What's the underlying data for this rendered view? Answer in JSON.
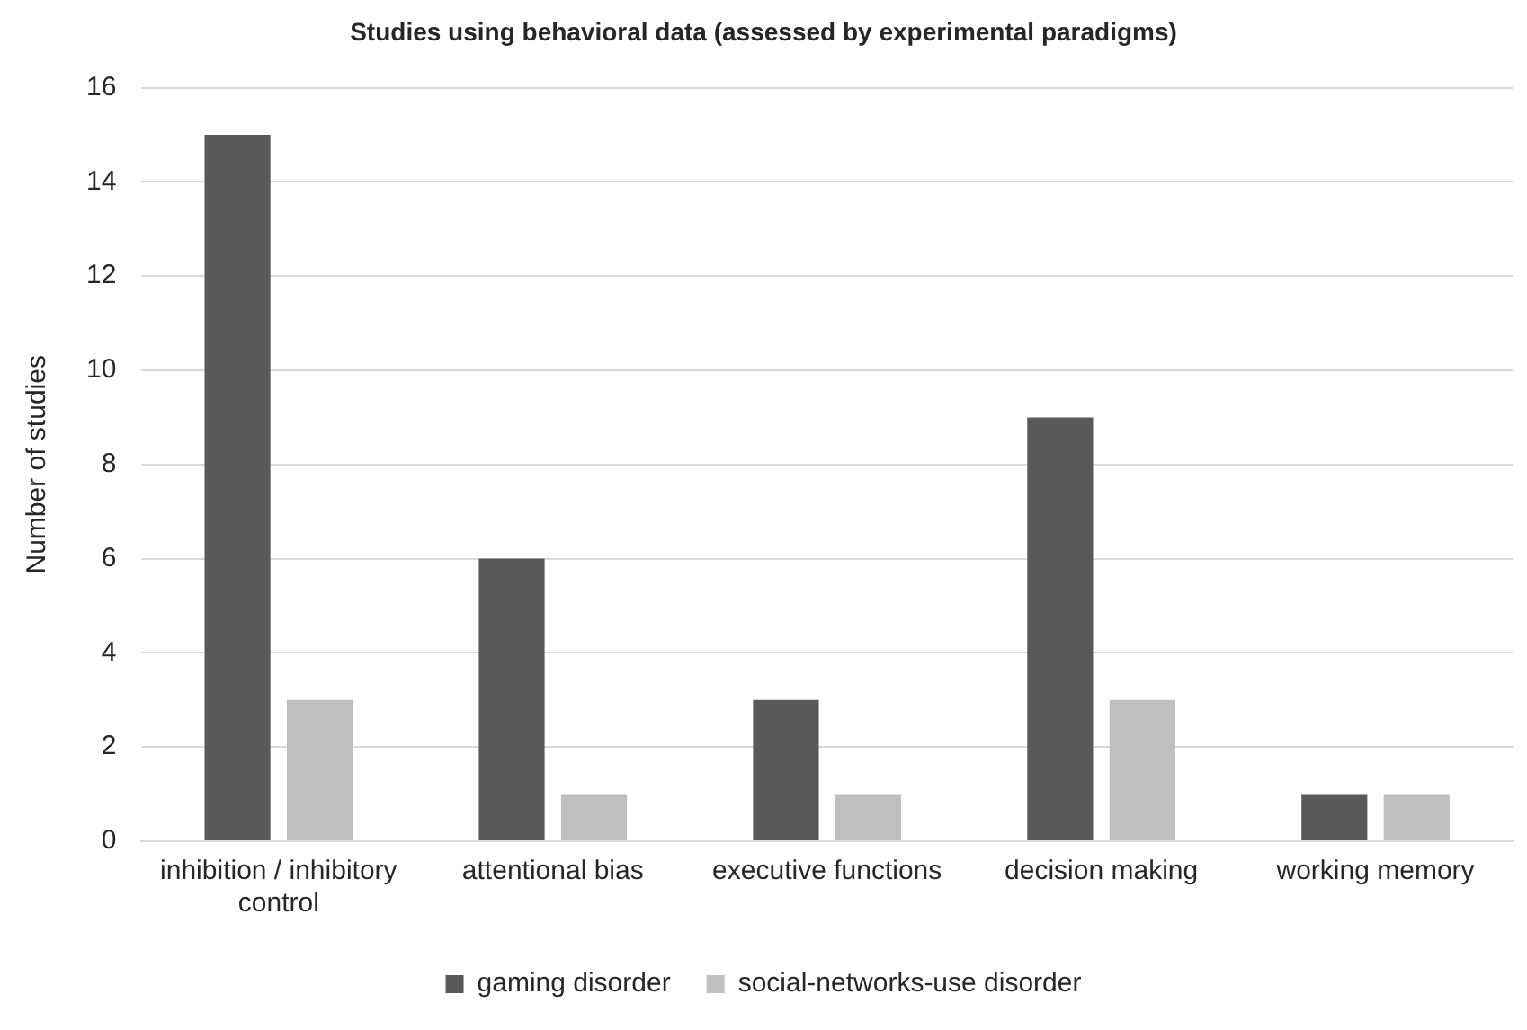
{
  "chart_data": {
    "type": "bar",
    "title": "Studies using behavioral data (assessed by experimental paradigms)",
    "ylabel": "Number of studies",
    "categories": [
      "inhibition / inhibitory control",
      "attentional bias",
      "executive functions",
      "decision making",
      "working memory"
    ],
    "series": [
      {
        "name": "gaming disorder",
        "color": "#595959",
        "values": [
          15,
          6,
          3,
          9,
          1
        ]
      },
      {
        "name": "social-networks-use disorder",
        "color": "#bfbfbf",
        "values": [
          3,
          1,
          1,
          3,
          1
        ]
      }
    ],
    "ylim": [
      0,
      16
    ],
    "yticks": [
      0,
      2,
      4,
      6,
      8,
      10,
      12,
      14,
      16
    ],
    "grid": "y",
    "legend": "bottom"
  }
}
